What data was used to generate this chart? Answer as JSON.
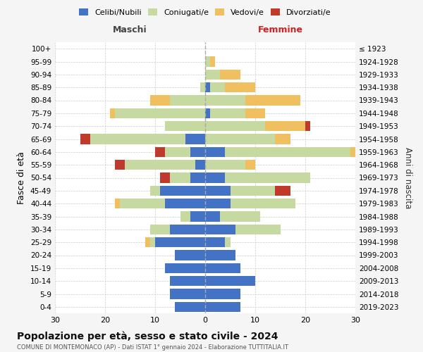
{
  "age_groups": [
    "0-4",
    "5-9",
    "10-14",
    "15-19",
    "20-24",
    "25-29",
    "30-34",
    "35-39",
    "40-44",
    "45-49",
    "50-54",
    "55-59",
    "60-64",
    "65-69",
    "70-74",
    "75-79",
    "80-84",
    "85-89",
    "90-94",
    "95-99",
    "100+"
  ],
  "birth_years": [
    "2019-2023",
    "2014-2018",
    "2009-2013",
    "2004-2008",
    "1999-2003",
    "1994-1998",
    "1989-1993",
    "1984-1988",
    "1979-1983",
    "1974-1978",
    "1969-1973",
    "1964-1968",
    "1959-1963",
    "1954-1958",
    "1949-1953",
    "1944-1948",
    "1939-1943",
    "1934-1938",
    "1929-1933",
    "1924-1928",
    "≤ 1923"
  ],
  "males": {
    "celibi": [
      6,
      7,
      7,
      8,
      6,
      10,
      7,
      3,
      8,
      9,
      3,
      2,
      3,
      4,
      0,
      0,
      0,
      0,
      0,
      0,
      0
    ],
    "coniugati": [
      0,
      0,
      0,
      0,
      0,
      1,
      4,
      2,
      9,
      2,
      4,
      14,
      5,
      19,
      8,
      18,
      7,
      1,
      0,
      0,
      0
    ],
    "vedovi": [
      0,
      0,
      0,
      0,
      0,
      1,
      0,
      0,
      1,
      0,
      0,
      0,
      0,
      0,
      0,
      1,
      4,
      0,
      0,
      0,
      0
    ],
    "divorziati": [
      0,
      0,
      0,
      0,
      0,
      0,
      0,
      0,
      0,
      0,
      2,
      2,
      2,
      2,
      0,
      0,
      0,
      0,
      0,
      0,
      0
    ]
  },
  "females": {
    "nubili": [
      7,
      7,
      10,
      7,
      6,
      4,
      6,
      3,
      5,
      5,
      4,
      0,
      4,
      0,
      0,
      1,
      0,
      1,
      0,
      0,
      0
    ],
    "coniugate": [
      0,
      0,
      0,
      0,
      0,
      1,
      9,
      8,
      13,
      9,
      17,
      8,
      25,
      14,
      12,
      7,
      8,
      3,
      3,
      1,
      0
    ],
    "vedove": [
      0,
      0,
      0,
      0,
      0,
      0,
      0,
      0,
      0,
      0,
      0,
      2,
      2,
      3,
      8,
      4,
      11,
      6,
      4,
      1,
      0
    ],
    "divorziate": [
      0,
      0,
      0,
      0,
      0,
      0,
      0,
      0,
      0,
      3,
      0,
      0,
      1,
      0,
      1,
      0,
      0,
      0,
      0,
      0,
      0
    ]
  },
  "colors": {
    "celibi_nubili": "#4472c4",
    "coniugati_e": "#c5d9a0",
    "vedovi_e": "#f0c060",
    "divorziati_e": "#c0392b"
  },
  "xlim": 30,
  "title": "Popolazione per età, sesso e stato civile - 2024",
  "subtitle": "COMUNE DI MONTEMONACO (AP) - Dati ISTAT 1° gennaio 2024 - Elaborazione TUTTITALIA.IT",
  "ylabel_left": "Fasce di età",
  "ylabel_right": "Anni di nascita",
  "xlabel_left": "Maschi",
  "xlabel_right": "Femmine",
  "bg_color": "#f5f5f5",
  "plot_bg": "#ffffff"
}
